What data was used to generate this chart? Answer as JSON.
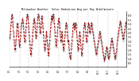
{
  "title": "Milwaukee Weather  Solar Radiation Avg per Day W/m2/minute",
  "bg_color": "#ffffff",
  "line_color": "#cc0000",
  "point_color": "#000000",
  "grid_color": "#999999",
  "ylim": [
    0,
    6.5
  ],
  "ytick_vals": [
    0.5,
    1.0,
    1.5,
    2.0,
    2.5,
    3.0,
    3.5,
    4.0,
    4.5,
    5.0,
    5.5,
    6.0
  ],
  "y_values": [
    3.5,
    3.2,
    3.8,
    4.2,
    4.8,
    5.2,
    5.6,
    5.9,
    6.1,
    5.7,
    5.2,
    4.7,
    4.1,
    3.6,
    3.1,
    2.6,
    2.1,
    1.9,
    2.1,
    2.6,
    3.1,
    3.7,
    4.2,
    4.7,
    5.1,
    4.9,
    4.6,
    4.1,
    3.6,
    3.1,
    2.6,
    2.3,
    2.6,
    3.1,
    3.6,
    4.1,
    4.6,
    4.9,
    5.1,
    5.3,
    5.6,
    5.4,
    5.1,
    4.6,
    4.1,
    3.6,
    3.1,
    2.9,
    3.1,
    3.6,
    4.1,
    4.6,
    5.1,
    5.6,
    5.9,
    6.1,
    5.9,
    5.6,
    5.1,
    4.6,
    4.1,
    3.6,
    3.1,
    2.6,
    2.1,
    1.6,
    1.3,
    1.6,
    2.1,
    2.6,
    3.1,
    3.6,
    4.1,
    4.6,
    5.1,
    5.3,
    5.6,
    5.4,
    5.1,
    4.6,
    4.1,
    3.6,
    3.3,
    3.6,
    4.1,
    4.6,
    5.1,
    5.6,
    5.9,
    6.1,
    5.9,
    5.6,
    5.1,
    4.6,
    4.1,
    3.9,
    4.1,
    4.6,
    5.1,
    5.6,
    5.9,
    5.6,
    5.1,
    4.6,
    4.1,
    3.6,
    3.1,
    2.6,
    2.1,
    1.9,
    2.1,
    2.6,
    3.1,
    3.6,
    4.1,
    3.6,
    3.1,
    2.6,
    2.1,
    1.6,
    1.3,
    1.6,
    2.1,
    2.6,
    3.1,
    3.6,
    4.1,
    4.6,
    5.1,
    5.6,
    5.9,
    5.6,
    5.3,
    5.6,
    5.9,
    6.1,
    5.9,
    5.6,
    5.1,
    4.6,
    4.1,
    3.6,
    3.1,
    2.6,
    2.3,
    2.6,
    3.1,
    3.6,
    4.1,
    4.6,
    5.1,
    5.4,
    5.6,
    5.3,
    5.1,
    4.6,
    4.1,
    3.6,
    3.1,
    2.9,
    3.1,
    3.6,
    4.1,
    3.6,
    3.1,
    2.6,
    2.1,
    1.9,
    2.1,
    2.6,
    3.1,
    3.6,
    4.1,
    4.6,
    4.9,
    5.1,
    4.9,
    4.6,
    4.1,
    3.6,
    3.1,
    2.9,
    3.1,
    2.6,
    2.1,
    1.6,
    1.3,
    1.1,
    0.9,
    1.1,
    1.6,
    2.1,
    2.6,
    3.1,
    3.6,
    4.1,
    4.6,
    4.9,
    5.1,
    4.9,
    4.6,
    4.3,
    4.6,
    4.9,
    5.1,
    4.9,
    4.6,
    4.1,
    3.6,
    3.1,
    2.6,
    2.1,
    1.9,
    2.1,
    2.6,
    3.1,
    3.6,
    4.1,
    3.6,
    3.1,
    2.6,
    2.1,
    1.6,
    1.3,
    1.6,
    2.1,
    2.6,
    3.1,
    3.6,
    4.1,
    4.6,
    4.9,
    5.1,
    4.9,
    4.6,
    4.1,
    3.6,
    3.1,
    2.9,
    3.1,
    3.6,
    4.1,
    4.6,
    4.9,
    5.1,
    4.9,
    4.6,
    4.1,
    3.9,
    4.1,
    4.3,
    4.6,
    4.9,
    5.1,
    4.9,
    4.6,
    4.3,
    4.1,
    3.9,
    3.6,
    3.3,
    3.1,
    2.9,
    2.6,
    2.3,
    2.1,
    1.9,
    1.6,
    1.4,
    1.6,
    1.9,
    2.1,
    2.3,
    2.6,
    2.9,
    3.1,
    3.3,
    3.6,
    3.9,
    4.1,
    3.9,
    3.6,
    3.3,
    3.1,
    2.9,
    2.6,
    2.3,
    2.1,
    1.9,
    1.6,
    1.3,
    1.1,
    0.9,
    0.7,
    0.9,
    1.1,
    1.3,
    1.6,
    1.9,
    2.1,
    2.3,
    2.1,
    1.9,
    1.6,
    1.3,
    1.1,
    0.9,
    1.1,
    1.3,
    1.6,
    1.9,
    2.1,
    2.3,
    2.6,
    2.9,
    3.1,
    3.3,
    3.1,
    2.9,
    2.6,
    2.3,
    2.1,
    1.9,
    1.6,
    1.3,
    1.1,
    0.9,
    1.1,
    1.3,
    1.6,
    1.9,
    2.1,
    2.6,
    3.1,
    3.3,
    3.6,
    3.9,
    4.1,
    4.3,
    4.6,
    4.9,
    5.1,
    5.3,
    5.1,
    4.9,
    4.6,
    4.3,
    4.1,
    3.9,
    3.6,
    3.3,
    3.1,
    3.3,
    3.6,
    3.9,
    4.1,
    4.3,
    4.6,
    4.9,
    5.1,
    5.3
  ],
  "month_ticks": [
    0,
    31,
    59,
    90,
    120,
    151,
    181,
    212,
    243,
    273,
    304,
    334
  ],
  "month_labels": [
    "1/1",
    "2/1",
    "3/1",
    "4/1",
    "5/1",
    "6/1",
    "7/1",
    "8/1",
    "9/1",
    "10/1",
    "11/1",
    "12/1"
  ]
}
